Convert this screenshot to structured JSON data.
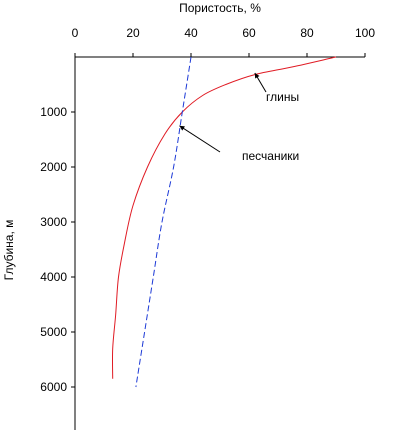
{
  "chart_data": {
    "type": "line",
    "xlabel": "Пористость, %",
    "ylabel": "Глубина, м",
    "xlim": [
      0,
      100
    ],
    "ylim": [
      0,
      6500
    ],
    "x_ticks": [
      0,
      20,
      40,
      60,
      80,
      100
    ],
    "y_ticks": [
      1000,
      2000,
      3000,
      4000,
      5000,
      6000
    ],
    "x_axis_position": "top",
    "y_inverted": true,
    "grid": false,
    "legend": "none",
    "series": [
      {
        "name": "глины",
        "color": "#e01b24",
        "dash": "solid",
        "points": [
          [
            90,
            0
          ],
          [
            75,
            180
          ],
          [
            62,
            320
          ],
          [
            52,
            500
          ],
          [
            44,
            700
          ],
          [
            37,
            1000
          ],
          [
            31,
            1400
          ],
          [
            25,
            2000
          ],
          [
            20,
            2700
          ],
          [
            17,
            3400
          ],
          [
            15,
            4000
          ],
          [
            14,
            4700
          ],
          [
            13,
            5300
          ],
          [
            13,
            5850
          ]
        ]
      },
      {
        "name": "песчаники",
        "color": "#1c39d6",
        "dash": "dashed",
        "points": [
          [
            40,
            0
          ],
          [
            37,
            1000
          ],
          [
            34,
            2000
          ],
          [
            30,
            3000
          ],
          [
            27,
            4000
          ],
          [
            24,
            5000
          ],
          [
            21,
            6000
          ]
        ]
      }
    ],
    "annotations": [
      {
        "text": "глины",
        "series": 0,
        "point": [
          62,
          290
        ]
      },
      {
        "text": "песчаники",
        "series": 1,
        "point": [
          36,
          1250
        ]
      }
    ]
  }
}
